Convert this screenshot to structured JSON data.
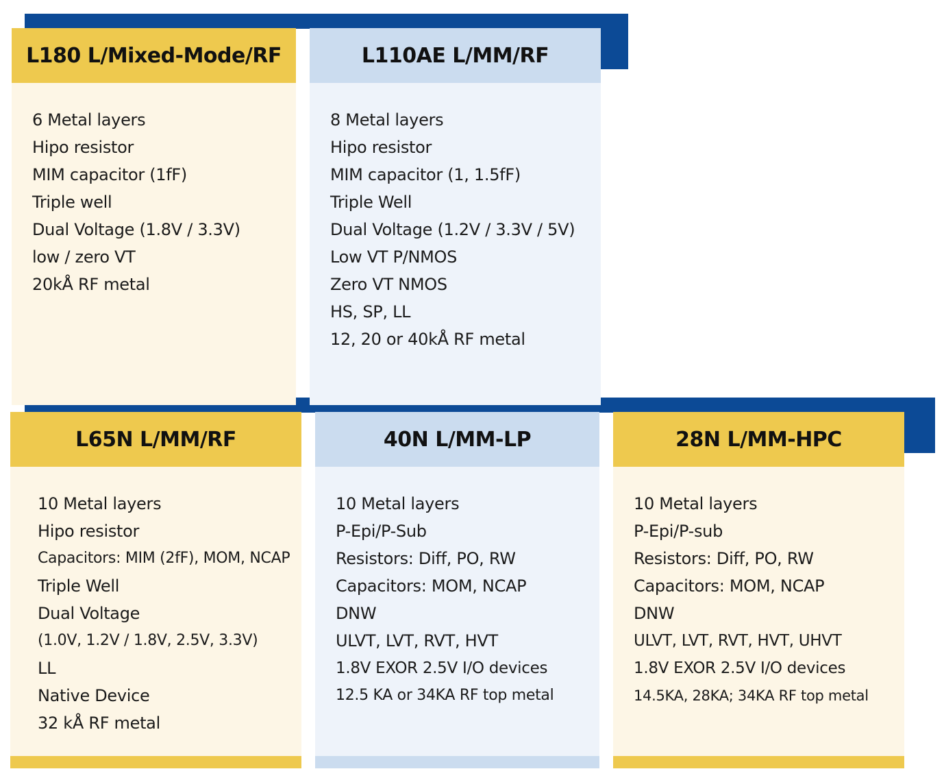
{
  "colors": {
    "accent_blue": "#0c4a96",
    "yellow": "#eec94e",
    "yellow_light": "#fdf6e6",
    "blue_header": "#cbdcef",
    "blue_light": "#eef3fa"
  },
  "top_row": [
    {
      "title": "L180 L/Mixed-Mode/RF",
      "items": [
        "6 Metal layers",
        "Hipo resistor",
        "MIM capacitor (1fF)",
        "Triple well",
        "Dual Voltage (1.8V / 3.3V)",
        "low / zero VT",
        "20kÅ RF metal"
      ]
    },
    {
      "title": "L110AE L/MM/RF",
      "items": [
        "8 Metal layers",
        "Hipo resistor",
        "MIM capacitor (1, 1.5fF)",
        "Triple Well",
        "Dual Voltage (1.2V / 3.3V / 5V)",
        "Low VT P/NMOS",
        "Zero VT NMOS",
        "HS, SP, LL",
        "12, 20 or 40kÅ RF metal"
      ]
    }
  ],
  "bottom_row": [
    {
      "title": "L65N L/MM/RF",
      "items": [
        "10 Metal layers",
        "Hipo resistor",
        "Capacitors: MIM (2fF), MOM, NCAP",
        "Triple Well",
        "Dual Voltage",
        "(1.0V, 1.2V / 1.8V, 2.5V, 3.3V)",
        "LL",
        "Native Device",
        "32 kÅ RF metal"
      ]
    },
    {
      "title": "40N L/MM-LP",
      "items": [
        "10 Metal layers",
        "P-Epi/P-Sub",
        "Resistors: Diff, PO, RW",
        "Capacitors: MOM, NCAP",
        "DNW",
        "ULVT, LVT, RVT, HVT",
        "1.8V EXOR 2.5V I/O devices",
        "12.5 KA or 34KA RF top metal"
      ]
    },
    {
      "title": "28N L/MM-HPC",
      "items": [
        "10 Metal layers",
        "P-Epi/P-sub",
        "Resistors: Diff, PO, RW",
        "Capacitors: MOM, NCAP",
        "DNW",
        "ULVT, LVT, RVT, HVT, UHVT",
        "1.8V EXOR 2.5V I/O devices",
        "14.5KA, 28KA; 34KA RF top metal"
      ]
    }
  ]
}
